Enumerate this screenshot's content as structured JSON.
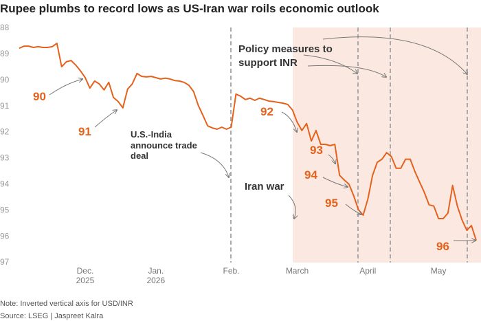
{
  "chart_data": {
    "type": "line",
    "title": "Rupee plumbs to record lows as US-Iran war roils economic outlook",
    "note": "Note: Inverted vertical axis for USD/INR",
    "source": "Source: LSEG | Jaspreet Kalra",
    "categories": [
      null,
      null,
      null,
      null,
      null,
      null,
      null,
      null,
      null,
      null,
      null,
      null,
      null,
      null,
      "Dec.\n2025",
      null,
      null,
      null,
      null,
      null,
      null,
      null,
      null,
      null,
      null,
      null,
      null,
      null,
      null,
      "Jan.\n2026",
      null,
      null,
      null,
      null,
      null,
      null,
      null,
      null,
      null,
      null,
      null,
      null,
      null,
      null,
      null,
      "Feb.",
      null,
      null,
      null,
      null,
      null,
      null,
      null,
      null,
      null,
      null,
      null,
      null,
      null,
      "March",
      null,
      null,
      null,
      null,
      null,
      null,
      null,
      null,
      null,
      null,
      null,
      null,
      null,
      null,
      "April",
      null,
      null,
      null,
      null,
      null,
      null,
      null,
      null,
      null,
      null,
      null,
      null,
      null,
      null,
      "May",
      null,
      null,
      null,
      null,
      null,
      null,
      null,
      null
    ],
    "series": [
      {
        "name": "USD/INR",
        "color": "#e5611b",
        "values": [
          88.77,
          88.69,
          88.69,
          88.74,
          88.71,
          88.74,
          88.74,
          88.71,
          88.58,
          89.48,
          89.29,
          89.24,
          89.42,
          89.64,
          89.9,
          90.3,
          90.03,
          90.14,
          90.37,
          90.08,
          90.66,
          90.82,
          91.06,
          90.34,
          90.14,
          89.74,
          89.85,
          89.87,
          89.85,
          89.9,
          89.95,
          89.92,
          89.95,
          90.01,
          90.03,
          90.08,
          90.19,
          90.43,
          90.96,
          91.35,
          91.75,
          91.83,
          91.88,
          91.8,
          91.88,
          91.8,
          90.53,
          90.61,
          90.74,
          90.69,
          90.77,
          90.69,
          90.74,
          90.8,
          90.82,
          90.85,
          90.88,
          90.93,
          91.14,
          91.61,
          91.93,
          91.66,
          92.33,
          91.93,
          92.46,
          92.46,
          92.51,
          92.46,
          93.65,
          93.83,
          93.99,
          94.44,
          94.97,
          95.18,
          94.57,
          93.65,
          93.15,
          93.03,
          92.78,
          92.93,
          93.38,
          93.38,
          93.03,
          93.03,
          93.51,
          93.91,
          94.31,
          94.78,
          94.83,
          95.31,
          95.31,
          95.1,
          94.04,
          94.83,
          95.36,
          95.76,
          95.58,
          96.15
        ]
      }
    ],
    "ylim": [
      97,
      88
    ],
    "yticks": [
      88,
      89,
      90,
      91,
      92,
      93,
      94,
      95,
      96,
      97
    ],
    "annotations": [
      "90",
      "91",
      "92",
      "93",
      "94",
      "95",
      "96",
      "U.S.-India\nannounce trade\ndeal",
      "Iran war",
      "Policy measures to\nsupport INR"
    ]
  }
}
